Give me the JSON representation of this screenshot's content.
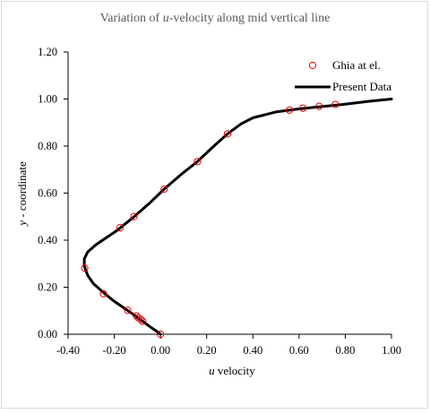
{
  "chart_data": {
    "type": "scatter",
    "title_parts": [
      "Variation of ",
      "u",
      "-velocity along mid vertical line"
    ],
    "xlabel_parts": [
      "u",
      " velocity"
    ],
    "ylabel_parts": [
      "y",
      " - coordinate"
    ],
    "xlim": [
      -0.4,
      1.0
    ],
    "ylim": [
      0.0,
      1.2
    ],
    "xticks": [
      "-0.40",
      "-0.20",
      "0.00",
      "0.20",
      "0.40",
      "0.60",
      "0.80",
      "1.00"
    ],
    "yticks": [
      "0.00",
      "0.20",
      "0.40",
      "0.60",
      "0.80",
      "1.00",
      "1.20"
    ],
    "grid": false,
    "legend_position": "top-right",
    "series": [
      {
        "name": "Ghia at el.",
        "style": "markers",
        "color": "#e60000",
        "points": [
          [
            0.0,
            0.0
          ],
          [
            -0.077,
            0.055
          ],
          [
            -0.085,
            0.063
          ],
          [
            -0.096,
            0.07
          ],
          [
            -0.104,
            0.078
          ],
          [
            -0.142,
            0.102
          ],
          [
            -0.247,
            0.172
          ],
          [
            -0.328,
            0.281
          ],
          [
            -0.175,
            0.453
          ],
          [
            -0.115,
            0.5
          ],
          [
            0.016,
            0.617
          ],
          [
            0.16,
            0.734
          ],
          [
            0.29,
            0.852
          ],
          [
            0.558,
            0.953
          ],
          [
            0.617,
            0.961
          ],
          [
            0.687,
            0.969
          ],
          [
            0.757,
            0.977
          ]
        ]
      },
      {
        "name": "Present Data",
        "style": "line",
        "color": "#000000",
        "points": [
          [
            0.0,
            0.0
          ],
          [
            -0.02,
            0.015
          ],
          [
            -0.05,
            0.035
          ],
          [
            -0.09,
            0.065
          ],
          [
            -0.14,
            0.1
          ],
          [
            -0.2,
            0.14
          ],
          [
            -0.25,
            0.18
          ],
          [
            -0.29,
            0.215
          ],
          [
            -0.315,
            0.25
          ],
          [
            -0.33,
            0.29
          ],
          [
            -0.33,
            0.32
          ],
          [
            -0.315,
            0.35
          ],
          [
            -0.28,
            0.38
          ],
          [
            -0.235,
            0.41
          ],
          [
            -0.19,
            0.44
          ],
          [
            -0.12,
            0.495
          ],
          [
            -0.05,
            0.555
          ],
          [
            0.016,
            0.617
          ],
          [
            0.09,
            0.68
          ],
          [
            0.16,
            0.734
          ],
          [
            0.22,
            0.79
          ],
          [
            0.29,
            0.852
          ],
          [
            0.35,
            0.895
          ],
          [
            0.4,
            0.92
          ],
          [
            0.5,
            0.945
          ],
          [
            0.6,
            0.958
          ],
          [
            0.7,
            0.968
          ],
          [
            0.8,
            0.978
          ],
          [
            0.9,
            0.99
          ],
          [
            1.0,
            1.0
          ]
        ]
      }
    ]
  }
}
